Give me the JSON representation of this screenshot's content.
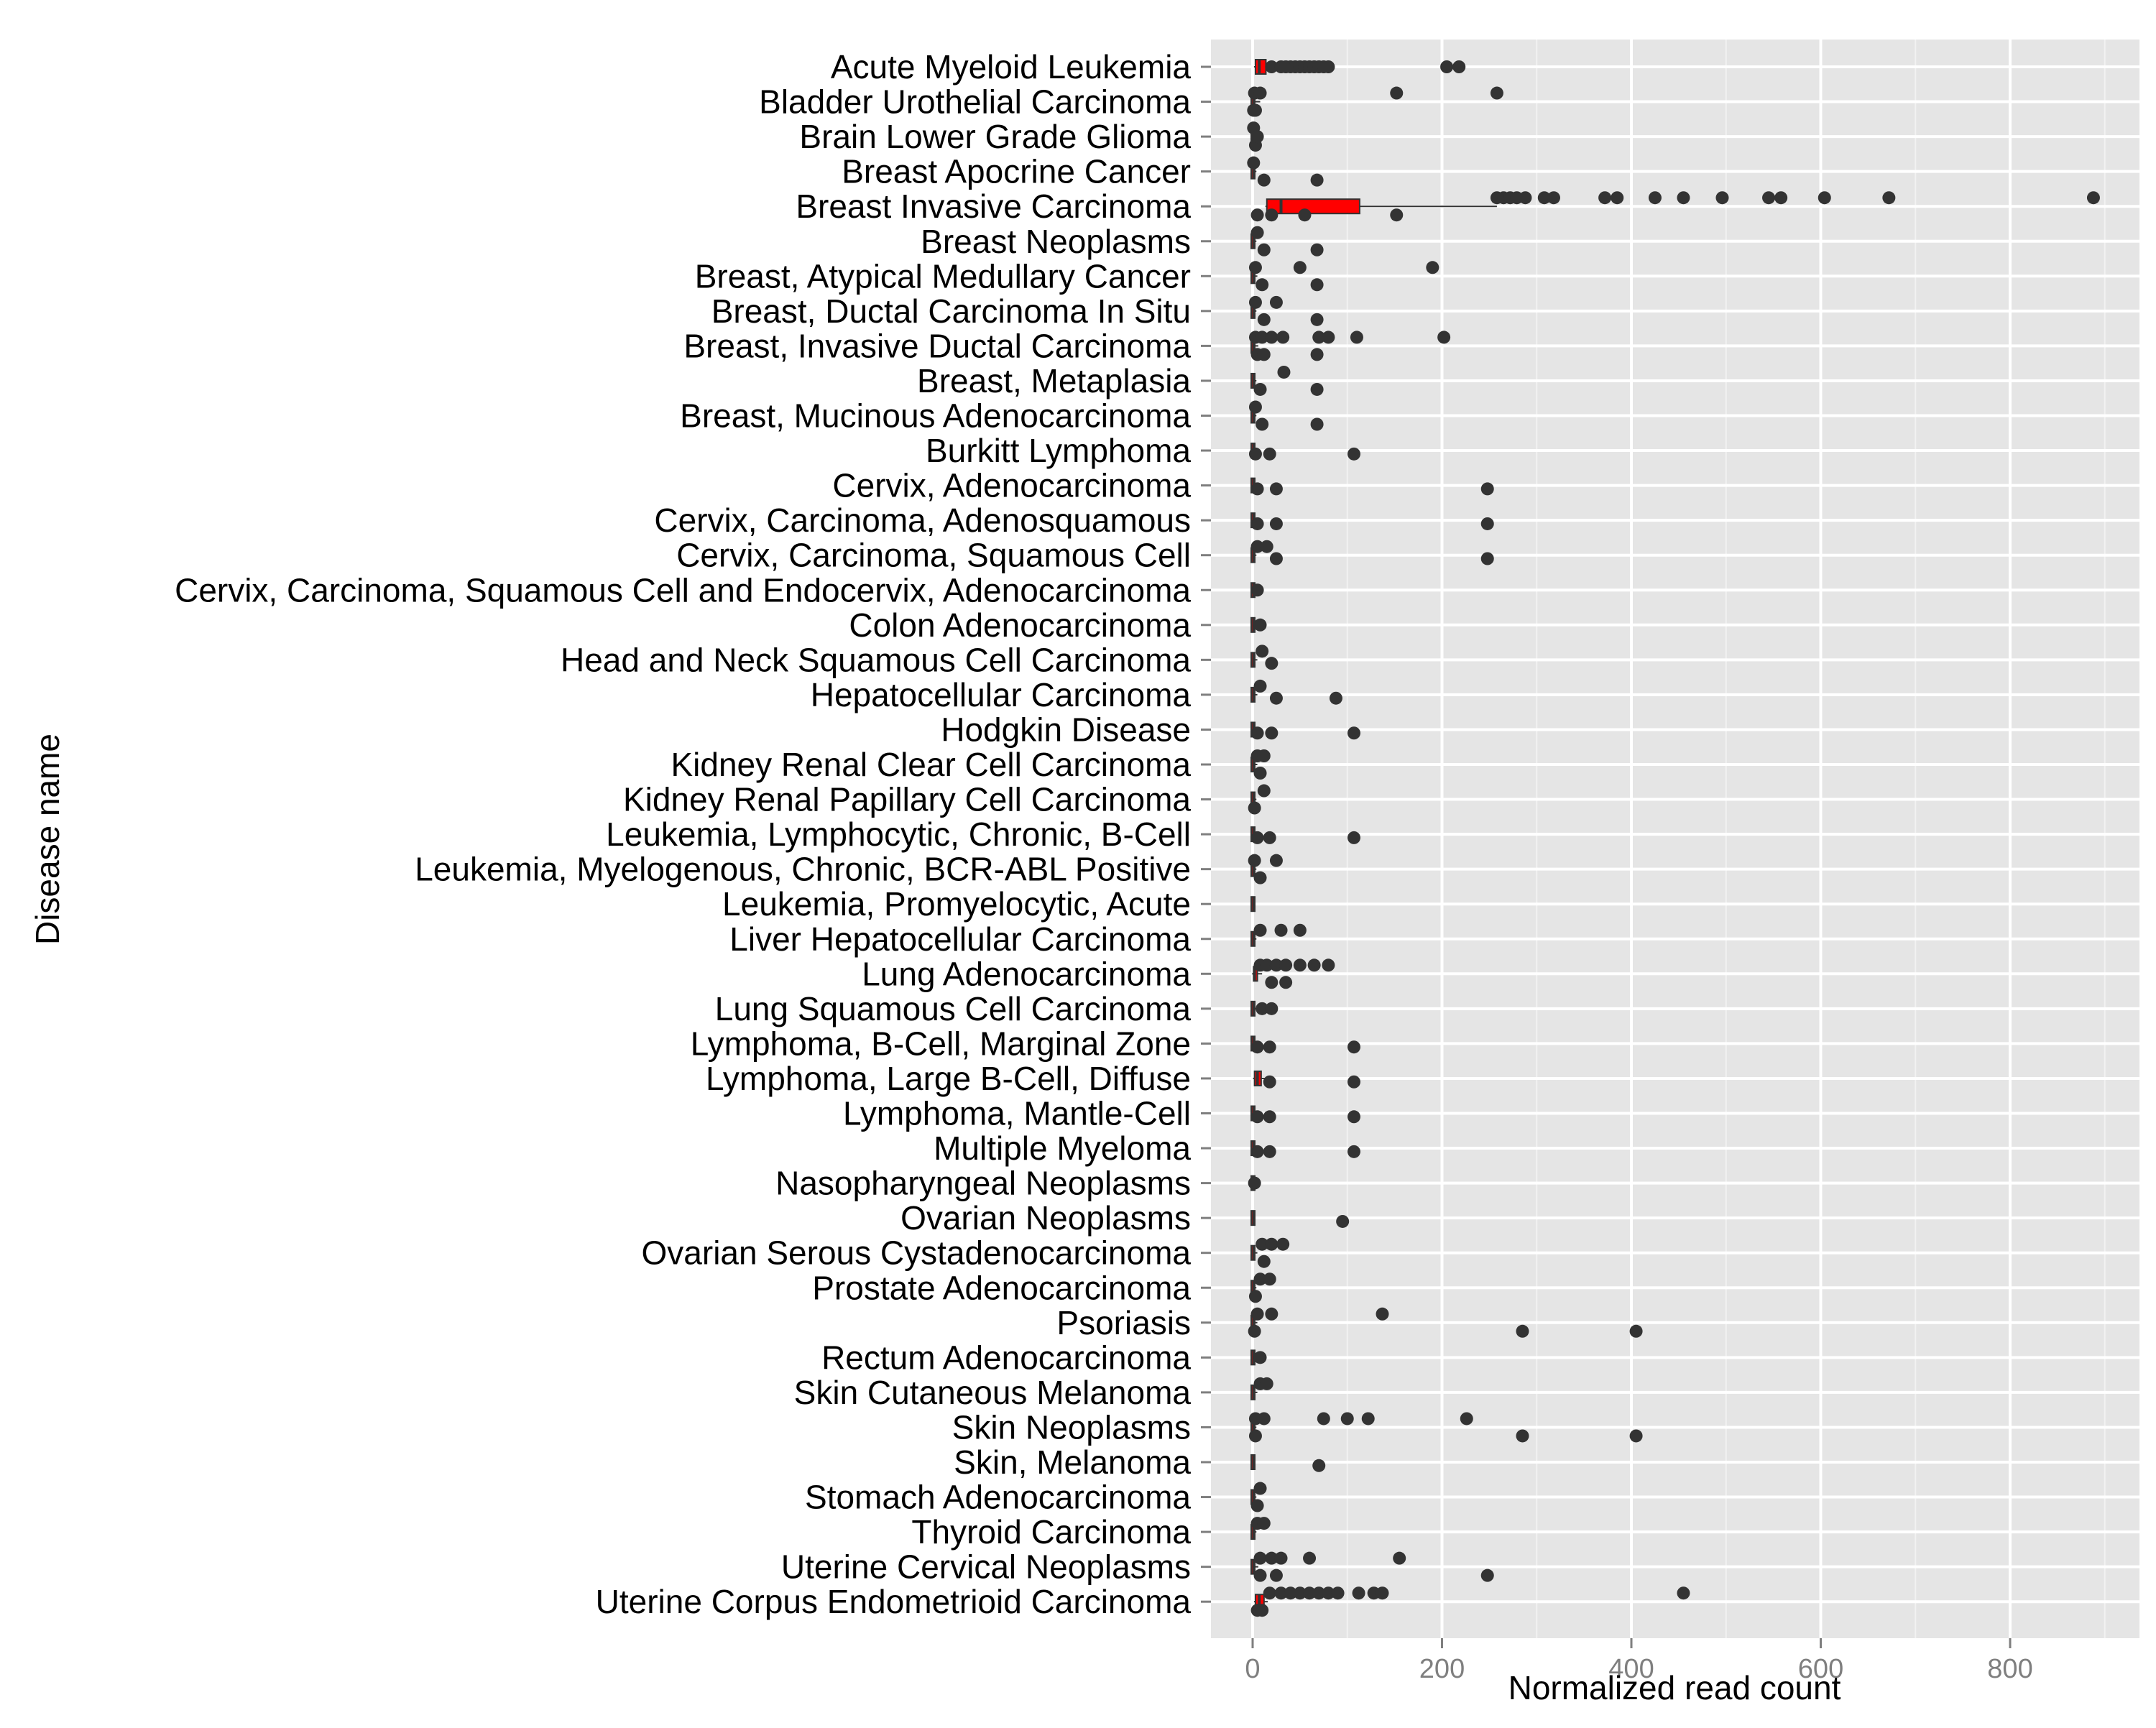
{
  "chart_data": {
    "type": "boxplot",
    "orientation": "horizontal",
    "xlabel": "Normalized read count",
    "ylabel": "Disease name",
    "xlim": [
      -45,
      930
    ],
    "xticks": [
      0,
      200,
      400,
      600,
      800
    ],
    "grid": true,
    "legend": "none",
    "colors": {
      "panel": "#e5e5e5",
      "grid": "#ffffff",
      "box_fill": "#ff0000",
      "box_line": "#333333",
      "point": "#333333",
      "tick_text": "#7f7f7f"
    },
    "categories": [
      "Acute Myeloid Leukemia",
      "Bladder Urothelial Carcinoma",
      "Brain Lower Grade Glioma",
      "Breast Apocrine Cancer",
      "Breast Invasive Carcinoma",
      "Breast Neoplasms",
      "Breast, Atypical Medullary Cancer",
      "Breast, Ductal Carcinoma In Situ",
      "Breast, Invasive Ductal Carcinoma",
      "Breast, Metaplasia",
      "Breast, Mucinous Adenocarcinoma",
      "Burkitt Lymphoma",
      "Cervix, Adenocarcinoma",
      "Cervix, Carcinoma, Adenosquamous",
      "Cervix, Carcinoma, Squamous Cell",
      "Cervix, Carcinoma, Squamous Cell and Endocervix, Adenocarcinoma",
      "Colon Adenocarcinoma",
      "Head and Neck Squamous Cell Carcinoma",
      "Hepatocellular Carcinoma",
      "Hodgkin Disease",
      "Kidney Renal Clear Cell Carcinoma",
      "Kidney Renal Papillary Cell Carcinoma",
      "Leukemia, Lymphocytic, Chronic, B-Cell",
      "Leukemia, Myelogenous, Chronic, BCR-ABL Positive",
      "Leukemia, Promyelocytic, Acute",
      "Liver Hepatocellular Carcinoma",
      "Lung Adenocarcinoma",
      "Lung Squamous Cell Carcinoma",
      "Lymphoma, B-Cell, Marginal Zone",
      "Lymphoma, Large B-Cell, Diffuse",
      "Lymphoma, Mantle-Cell",
      "Multiple Myeloma",
      "Nasopharyngeal Neoplasms",
      "Ovarian Neoplasms",
      "Ovarian Serous Cystadenocarcinoma",
      "Prostate Adenocarcinoma",
      "Psoriasis",
      "Rectum Adenocarcinoma",
      "Skin Cutaneous Melanoma",
      "Skin Neoplasms",
      "Skin, Melanoma",
      "Stomach Adenocarcinoma",
      "Thyroid Carcinoma",
      "Uterine Cervical Neoplasms",
      "Uterine Corpus Endometrioid Carcinoma"
    ],
    "boxes": [
      {
        "q1": 3,
        "median": 7,
        "q3": 14,
        "whisker_high": 17
      },
      {
        "q1": 0,
        "median": 1,
        "q3": 3,
        "whisker_high": 8
      },
      {
        "q1": 0,
        "median": 0,
        "q3": 1,
        "whisker_high": 3
      },
      {
        "q1": 0,
        "median": 1,
        "q3": 2,
        "whisker_high": 4
      },
      {
        "q1": 15,
        "median": 30,
        "q3": 113,
        "whisker_high": 258
      },
      {
        "q1": 0,
        "median": 1,
        "q3": 2,
        "whisker_high": 4
      },
      {
        "q1": 0,
        "median": 1,
        "q3": 3,
        "whisker_high": 5
      },
      {
        "q1": 0,
        "median": 1,
        "q3": 2,
        "whisker_high": 4
      },
      {
        "q1": 0,
        "median": 1,
        "q3": 3,
        "whisker_high": 6
      },
      {
        "q1": 0,
        "median": 1,
        "q3": 2,
        "whisker_high": 4
      },
      {
        "q1": 0,
        "median": 1,
        "q3": 2,
        "whisker_high": 4
      },
      {
        "q1": 0,
        "median": 1,
        "q3": 2,
        "whisker_high": 4
      },
      {
        "q1": 0,
        "median": 1,
        "q3": 2,
        "whisker_high": 4
      },
      {
        "q1": 0,
        "median": 1,
        "q3": 2,
        "whisker_high": 4
      },
      {
        "q1": 0,
        "median": 1,
        "q3": 2,
        "whisker_high": 4
      },
      {
        "q1": 0,
        "median": 1,
        "q3": 2,
        "whisker_high": 4
      },
      {
        "q1": 0,
        "median": 1,
        "q3": 2,
        "whisker_high": 4
      },
      {
        "q1": 0,
        "median": 1,
        "q3": 3,
        "whisker_high": 5
      },
      {
        "q1": 0,
        "median": 1,
        "q3": 3,
        "whisker_high": 5
      },
      {
        "q1": 0,
        "median": 1,
        "q3": 2,
        "whisker_high": 4
      },
      {
        "q1": 0,
        "median": 1,
        "q3": 3,
        "whisker_high": 5
      },
      {
        "q1": 0,
        "median": 1,
        "q3": 2,
        "whisker_high": 4
      },
      {
        "q1": 0,
        "median": 1,
        "q3": 2,
        "whisker_high": 4
      },
      {
        "q1": 0,
        "median": 1,
        "q3": 2,
        "whisker_high": 4
      },
      {
        "q1": 0,
        "median": 1,
        "q3": 2,
        "whisker_high": 3
      },
      {
        "q1": 0,
        "median": 1,
        "q3": 2,
        "whisker_high": 4
      },
      {
        "q1": 1,
        "median": 2,
        "q3": 5,
        "whisker_high": 10
      },
      {
        "q1": 0,
        "median": 1,
        "q3": 3,
        "whisker_high": 5
      },
      {
        "q1": 0,
        "median": 1,
        "q3": 2,
        "whisker_high": 4
      },
      {
        "q1": 2,
        "median": 5,
        "q3": 9,
        "whisker_high": 13
      },
      {
        "q1": 0,
        "median": 1,
        "q3": 2,
        "whisker_high": 4
      },
      {
        "q1": 0,
        "median": 1,
        "q3": 2,
        "whisker_high": 4
      },
      {
        "q1": 0,
        "median": 0,
        "q3": 1,
        "whisker_high": 2
      },
      {
        "q1": 0,
        "median": 1,
        "q3": 2,
        "whisker_high": 3
      },
      {
        "q1": 0,
        "median": 1,
        "q3": 3,
        "whisker_high": 5
      },
      {
        "q1": 0,
        "median": 1,
        "q3": 2,
        "whisker_high": 4
      },
      {
        "q1": 0,
        "median": 1,
        "q3": 3,
        "whisker_high": 5
      },
      {
        "q1": 0,
        "median": 1,
        "q3": 2,
        "whisker_high": 4
      },
      {
        "q1": 0,
        "median": 1,
        "q3": 3,
        "whisker_high": 5
      },
      {
        "q1": 0,
        "median": 1,
        "q3": 2,
        "whisker_high": 4
      },
      {
        "q1": 0,
        "median": 1,
        "q3": 2,
        "whisker_high": 3
      },
      {
        "q1": 0,
        "median": 1,
        "q3": 2,
        "whisker_high": 4
      },
      {
        "q1": 0,
        "median": 1,
        "q3": 2,
        "whisker_high": 4
      },
      {
        "q1": 0,
        "median": 1,
        "q3": 3,
        "whisker_high": 6
      },
      {
        "q1": 3,
        "median": 7,
        "q3": 12,
        "whisker_high": 16
      }
    ],
    "outliers": [
      [
        [
          20,
          0
        ],
        [
          30,
          0
        ],
        [
          35,
          0
        ],
        [
          40,
          0
        ],
        [
          45,
          0
        ],
        [
          50,
          0
        ],
        [
          55,
          0
        ],
        [
          60,
          0
        ],
        [
          65,
          0
        ],
        [
          70,
          0
        ],
        [
          75,
          0
        ],
        [
          80,
          0
        ],
        [
          205,
          0
        ],
        [
          218,
          0
        ]
      ],
      [
        [
          2,
          -0.25
        ],
        [
          8,
          -0.25
        ],
        [
          152,
          -0.25
        ],
        [
          258,
          -0.25
        ],
        [
          1,
          0.25
        ],
        [
          3,
          0.25
        ]
      ],
      [
        [
          1,
          -0.25
        ],
        [
          3,
          0.25
        ],
        [
          5,
          0
        ]
      ],
      [
        [
          1,
          -0.25
        ],
        [
          12,
          0.25
        ],
        [
          68,
          0.25
        ]
      ],
      [
        [
          258,
          -0.25
        ],
        [
          265,
          -0.25
        ],
        [
          272,
          -0.25
        ],
        [
          279,
          -0.25
        ],
        [
          288,
          -0.25
        ],
        [
          308,
          -0.25
        ],
        [
          318,
          -0.25
        ],
        [
          372,
          -0.25
        ],
        [
          385,
          -0.25
        ],
        [
          425,
          -0.25
        ],
        [
          455,
          -0.25
        ],
        [
          496,
          -0.25
        ],
        [
          545,
          -0.25
        ],
        [
          558,
          -0.25
        ],
        [
          604,
          -0.25
        ],
        [
          672,
          -0.25
        ],
        [
          888,
          -0.25
        ],
        [
          5,
          0.25
        ],
        [
          20,
          0.25
        ],
        [
          55,
          0.25
        ],
        [
          152,
          0.25
        ]
      ],
      [
        [
          5,
          -0.25
        ],
        [
          12,
          0.25
        ],
        [
          68,
          0.25
        ]
      ],
      [
        [
          3,
          -0.25
        ],
        [
          50,
          -0.25
        ],
        [
          190,
          -0.25
        ],
        [
          10,
          0.25
        ],
        [
          68,
          0.25
        ]
      ],
      [
        [
          3,
          -0.25
        ],
        [
          25,
          -0.25
        ],
        [
          12,
          0.25
        ],
        [
          68,
          0.25
        ]
      ],
      [
        [
          3,
          -0.25
        ],
        [
          10,
          -0.25
        ],
        [
          20,
          -0.25
        ],
        [
          32,
          -0.25
        ],
        [
          70,
          -0.25
        ],
        [
          80,
          -0.25
        ],
        [
          110,
          -0.25
        ],
        [
          202,
          -0.25
        ],
        [
          5,
          0.25
        ],
        [
          12,
          0.25
        ],
        [
          68,
          0.25
        ]
      ],
      [
        [
          33,
          -0.25
        ],
        [
          8,
          0.25
        ],
        [
          68,
          0.25
        ]
      ],
      [
        [
          3,
          -0.25
        ],
        [
          10,
          0.25
        ],
        [
          68,
          0.25
        ]
      ],
      [
        [
          3,
          0.1
        ],
        [
          18,
          0.1
        ],
        [
          107,
          0.1
        ]
      ],
      [
        [
          5,
          0.1
        ],
        [
          25,
          0.1
        ],
        [
          248,
          0.1
        ]
      ],
      [
        [
          5,
          0.1
        ],
        [
          25,
          0.1
        ],
        [
          248,
          0.1
        ]
      ],
      [
        [
          5,
          -0.25
        ],
        [
          15,
          -0.25
        ],
        [
          25,
          0.1
        ],
        [
          248,
          0.1
        ]
      ],
      [
        [
          5,
          0
        ]
      ],
      [
        [
          8,
          0
        ]
      ],
      [
        [
          10,
          -0.25
        ],
        [
          20,
          0.1
        ]
      ],
      [
        [
          8,
          -0.25
        ],
        [
          25,
          0.1
        ],
        [
          88,
          0.1
        ]
      ],
      [
        [
          5,
          0.1
        ],
        [
          20,
          0.1
        ],
        [
          107,
          0.1
        ]
      ],
      [
        [
          5,
          -0.25
        ],
        [
          12,
          -0.25
        ],
        [
          8,
          0.25
        ]
      ],
      [
        [
          12,
          -0.25
        ],
        [
          2,
          0.25
        ]
      ],
      [
        [
          5,
          0.1
        ],
        [
          18,
          0.1
        ],
        [
          107,
          0.1
        ]
      ],
      [
        [
          2,
          -0.25
        ],
        [
          25,
          -0.25
        ],
        [
          8,
          0.25
        ]
      ],
      [],
      [
        [
          8,
          -0.25
        ],
        [
          30,
          -0.25
        ],
        [
          50,
          -0.25
        ]
      ],
      [
        [
          8,
          -0.25
        ],
        [
          15,
          -0.25
        ],
        [
          25,
          -0.25
        ],
        [
          35,
          -0.25
        ],
        [
          50,
          -0.25
        ],
        [
          65,
          -0.25
        ],
        [
          80,
          -0.25
        ],
        [
          20,
          0.25
        ],
        [
          35,
          0.25
        ]
      ],
      [
        [
          10,
          0
        ],
        [
          20,
          0
        ]
      ],
      [
        [
          5,
          0.1
        ],
        [
          18,
          0.1
        ],
        [
          107,
          0.1
        ]
      ],
      [
        [
          18,
          0.1
        ],
        [
          107,
          0.1
        ]
      ],
      [
        [
          5,
          0.1
        ],
        [
          18,
          0.1
        ],
        [
          107,
          0.1
        ]
      ],
      [
        [
          5,
          0.1
        ],
        [
          18,
          0.1
        ],
        [
          107,
          0.1
        ]
      ],
      [
        [
          2,
          0
        ]
      ],
      [
        [
          95,
          0.1
        ]
      ],
      [
        [
          10,
          -0.25
        ],
        [
          20,
          -0.25
        ],
        [
          32,
          -0.25
        ],
        [
          12,
          0.25
        ]
      ],
      [
        [
          8,
          -0.25
        ],
        [
          18,
          -0.25
        ],
        [
          3,
          0.25
        ]
      ],
      [
        [
          5,
          -0.25
        ],
        [
          20,
          -0.25
        ],
        [
          137,
          -0.25
        ],
        [
          2,
          0.25
        ],
        [
          285,
          0.25
        ],
        [
          405,
          0.25
        ]
      ],
      [
        [
          8,
          0
        ]
      ],
      [
        [
          8,
          -0.25
        ],
        [
          15,
          -0.25
        ]
      ],
      [
        [
          3,
          -0.25
        ],
        [
          12,
          -0.25
        ],
        [
          75,
          -0.25
        ],
        [
          100,
          -0.25
        ],
        [
          122,
          -0.25
        ],
        [
          226,
          -0.25
        ],
        [
          3,
          0.25
        ],
        [
          285,
          0.25
        ],
        [
          405,
          0.25
        ]
      ],
      [
        [
          70,
          0.1
        ]
      ],
      [
        [
          8,
          -0.25
        ],
        [
          5,
          0.25
        ]
      ],
      [
        [
          5,
          -0.25
        ],
        [
          12,
          -0.25
        ]
      ],
      [
        [
          8,
          -0.25
        ],
        [
          20,
          -0.25
        ],
        [
          30,
          -0.25
        ],
        [
          60,
          -0.25
        ],
        [
          155,
          -0.25
        ],
        [
          8,
          0.25
        ],
        [
          25,
          0.25
        ],
        [
          248,
          0.25
        ]
      ],
      [
        [
          18,
          -0.25
        ],
        [
          30,
          -0.25
        ],
        [
          40,
          -0.25
        ],
        [
          50,
          -0.25
        ],
        [
          60,
          -0.25
        ],
        [
          70,
          -0.25
        ],
        [
          80,
          -0.25
        ],
        [
          90,
          -0.25
        ],
        [
          112,
          -0.25
        ],
        [
          128,
          -0.25
        ],
        [
          137,
          -0.25
        ],
        [
          455,
          -0.25
        ],
        [
          5,
          0.25
        ],
        [
          10,
          0.25
        ]
      ]
    ]
  }
}
